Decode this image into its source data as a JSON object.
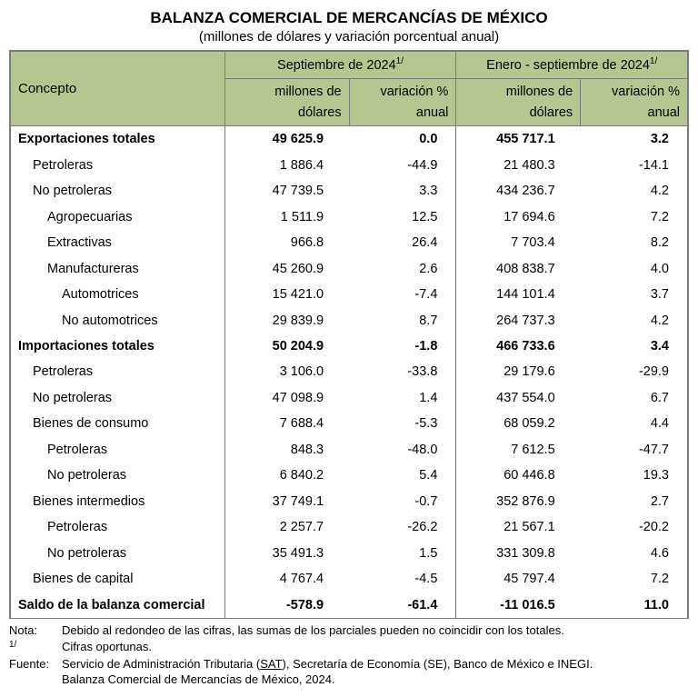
{
  "title": "BALANZA COMERCIAL DE MERCANCÍAS DE MÉXICO",
  "subtitle": "(millones de dólares y variación porcentual anual)",
  "headers": {
    "concept": "Concepto",
    "period1": "Septiembre de 2024",
    "period2": "Enero - septiembre de 2024",
    "sup": "1/",
    "mill": "millones de dólares",
    "var": "variación % anual"
  },
  "rows": [
    {
      "label": "Exportaciones totales",
      "indent": 0,
      "bold": true,
      "m1": "49 625.9",
      "v1": "0.0",
      "m2": "455 717.1",
      "v2": "3.2"
    },
    {
      "label": "Petroleras",
      "indent": 1,
      "bold": false,
      "m1": "1 886.4",
      "v1": "-44.9",
      "m2": "21 480.3",
      "v2": "-14.1"
    },
    {
      "label": "No petroleras",
      "indent": 1,
      "bold": false,
      "m1": "47 739.5",
      "v1": "3.3",
      "m2": "434 236.7",
      "v2": "4.2"
    },
    {
      "label": "Agropecuarias",
      "indent": 2,
      "bold": false,
      "m1": "1 511.9",
      "v1": "12.5",
      "m2": "17 694.6",
      "v2": "7.2"
    },
    {
      "label": "Extractivas",
      "indent": 2,
      "bold": false,
      "m1": "966.8",
      "v1": "26.4",
      "m2": "7 703.4",
      "v2": "8.2"
    },
    {
      "label": "Manufactureras",
      "indent": 2,
      "bold": false,
      "m1": "45 260.9",
      "v1": "2.6",
      "m2": "408 838.7",
      "v2": "4.0"
    },
    {
      "label": "Automotrices",
      "indent": 3,
      "bold": false,
      "m1": "15 421.0",
      "v1": "-7.4",
      "m2": "144 101.4",
      "v2": "3.7"
    },
    {
      "label": "No automotrices",
      "indent": 3,
      "bold": false,
      "m1": "29 839.9",
      "v1": "8.7",
      "m2": "264 737.3",
      "v2": "4.2"
    },
    {
      "label": "Importaciones totales",
      "indent": 0,
      "bold": true,
      "m1": "50 204.9",
      "v1": "-1.8",
      "m2": "466 733.6",
      "v2": "3.4"
    },
    {
      "label": "Petroleras",
      "indent": 1,
      "bold": false,
      "m1": "3 106.0",
      "v1": "-33.8",
      "m2": "29 179.6",
      "v2": "-29.9"
    },
    {
      "label": "No petroleras",
      "indent": 1,
      "bold": false,
      "m1": "47 098.9",
      "v1": "1.4",
      "m2": "437 554.0",
      "v2": "6.7"
    },
    {
      "label": "Bienes de consumo",
      "indent": 1,
      "bold": false,
      "m1": "7 688.4",
      "v1": "-5.3",
      "m2": "68 059.2",
      "v2": "4.4"
    },
    {
      "label": "Petroleras",
      "indent": 2,
      "bold": false,
      "m1": "848.3",
      "v1": "-48.0",
      "m2": "7 612.5",
      "v2": "-47.7"
    },
    {
      "label": "No petroleras",
      "indent": 2,
      "bold": false,
      "m1": "6 840.2",
      "v1": "5.4",
      "m2": "60 446.8",
      "v2": "19.3"
    },
    {
      "label": "Bienes intermedios",
      "indent": 1,
      "bold": false,
      "m1": "37 749.1",
      "v1": "-0.7",
      "m2": "352 876.9",
      "v2": "2.7"
    },
    {
      "label": "Petroleras",
      "indent": 2,
      "bold": false,
      "m1": "2 257.7",
      "v1": "-26.2",
      "m2": "21 567.1",
      "v2": "-20.2"
    },
    {
      "label": "No petroleras",
      "indent": 2,
      "bold": false,
      "m1": "35 491.3",
      "v1": "1.5",
      "m2": "331 309.8",
      "v2": "4.6"
    },
    {
      "label": "Bienes de capital",
      "indent": 1,
      "bold": false,
      "m1": "4 767.4",
      "v1": "-4.5",
      "m2": "45 797.4",
      "v2": "7.2"
    },
    {
      "label": "Saldo de la balanza comercial",
      "indent": 0,
      "bold": true,
      "m1": "-578.9",
      "v1": "-61.4",
      "m2": "-11 016.5",
      "v2": "11.0"
    }
  ],
  "notes": {
    "nota_label": "Nota:",
    "nota_text": "Debido al redondeo de las cifras, las sumas de los parciales pueden no coincidir con los totales.",
    "sup_label": "1/",
    "sup_text": "Cifras oportunas.",
    "fuente_label": "Fuente:",
    "fuente_text1": "Servicio de Administración Tributaria (",
    "fuente_sat": "SAT",
    "fuente_text2": "), Secretaría de Economía (",
    "fuente_se": "SE",
    "fuente_text3": "), Banco de México e ",
    "fuente_inegi": "INEGI",
    "fuente_text4": ".",
    "fuente_line2": "Balanza Comercial de Mercancías de México, 2024."
  }
}
